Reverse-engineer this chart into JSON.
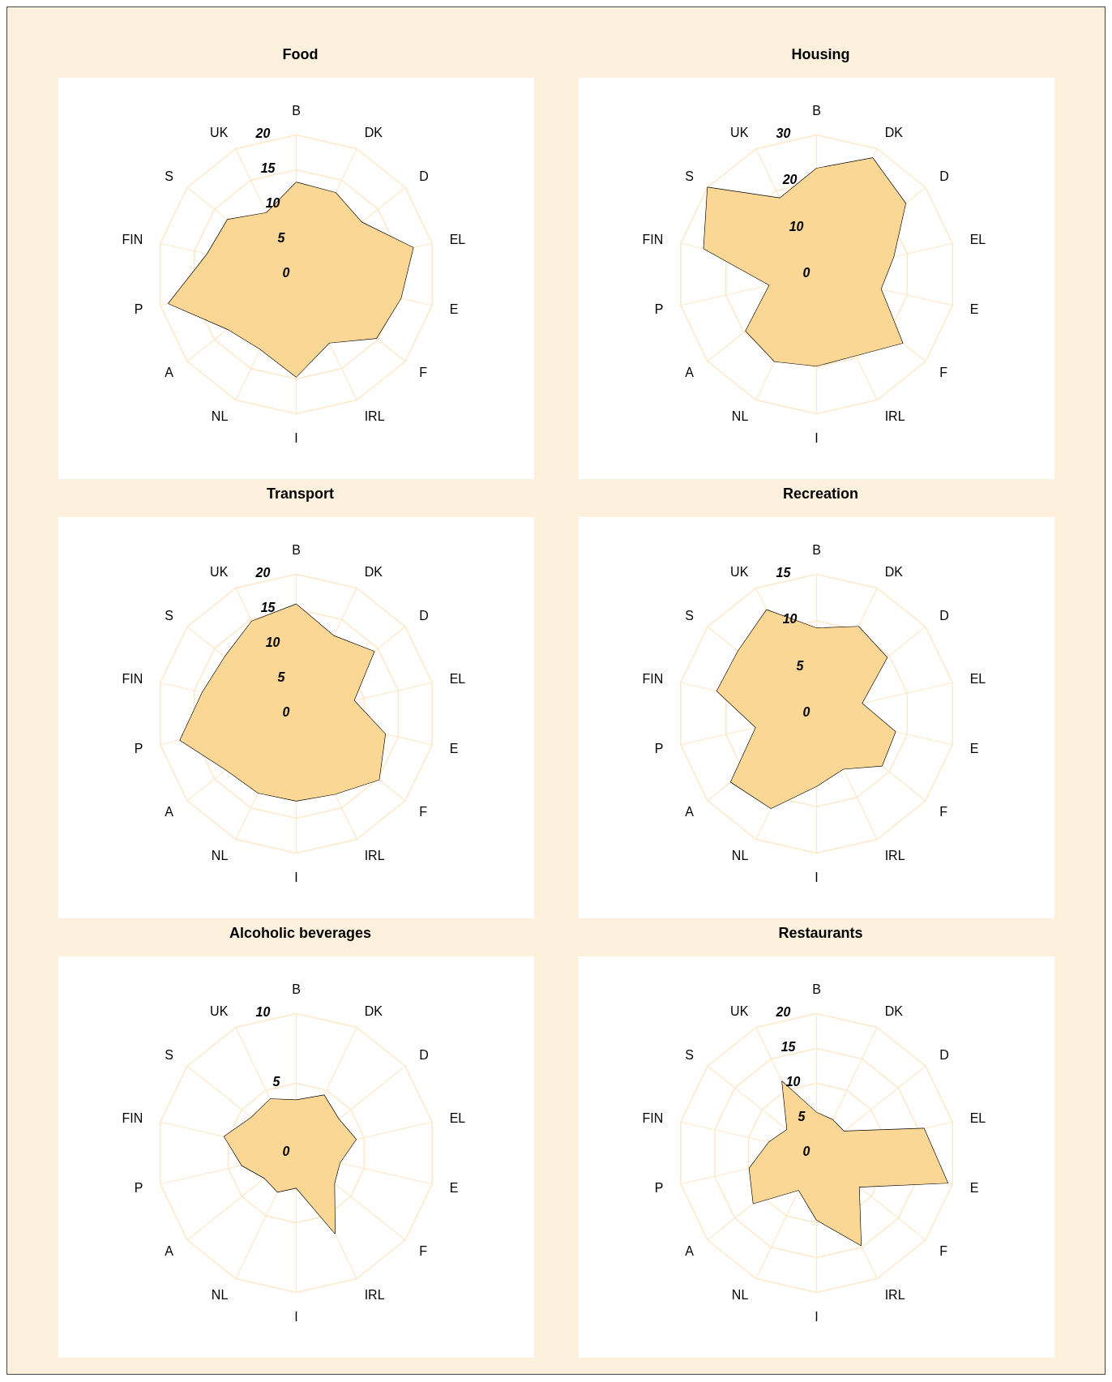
{
  "chart_data": [
    {
      "type": "radar",
      "title": "Food",
      "categories": [
        "B",
        "DK",
        "D",
        "EL",
        "E",
        "F",
        "IRL",
        "I",
        "NL",
        "A",
        "P",
        "FIN",
        "S",
        "UK"
      ],
      "series": [
        {
          "color": "#fad794",
          "values": [
            13.2,
            13.0,
            12.0,
            17.2,
            15.4,
            14.7,
            10.9,
            14.7,
            11.9,
            12.6,
            18.8,
            13.1,
            12.6,
            9.8
          ]
        }
      ],
      "ylim": [
        0,
        20
      ],
      "yticks": [
        0,
        5,
        10,
        15,
        20
      ],
      "grid": true
    },
    {
      "type": "radar",
      "title": "Housing",
      "categories": [
        "B",
        "DK",
        "D",
        "EL",
        "E",
        "F",
        "IRL",
        "I",
        "NL",
        "A",
        "P",
        "FIN",
        "S",
        "UK"
      ],
      "series": [
        {
          "color": "#fad794",
          "values": [
            22.8,
            27.8,
            24.5,
            17.0,
            14.2,
            23.7,
            19.4,
            19.7,
            20.8,
            19.5,
            10.4,
            24.9,
            30,
            18.2
          ]
        }
      ],
      "ylim": [
        0,
        30
      ],
      "yticks": [
        0,
        10,
        20,
        30
      ],
      "grid": true
    },
    {
      "type": "radar",
      "title": "Transport",
      "categories": [
        "B",
        "DK",
        "D",
        "EL",
        "E",
        "F",
        "IRL",
        "I",
        "NL",
        "A",
        "P",
        "FIN",
        "S",
        "UK"
      ],
      "series": [
        {
          "color": "#fad794",
          "values": [
            15.7,
            12.4,
            14.3,
            8.5,
            13.1,
            15.2,
            12.8,
            12.5,
            12.6,
            12.9,
            17.1,
            13.8,
            13.1,
            14.7
          ]
        }
      ],
      "ylim": [
        0,
        20
      ],
      "yticks": [
        0,
        5,
        10,
        15,
        20
      ],
      "grid": true
    },
    {
      "type": "radar",
      "title": "Recreation",
      "categories": [
        "B",
        "DK",
        "D",
        "EL",
        "E",
        "F",
        "IRL",
        "I",
        "NL",
        "A",
        "P",
        "FIN",
        "S",
        "UK"
      ],
      "series": [
        {
          "color": "#fad794",
          "values": [
            9.2,
            10.4,
            9.7,
            5.0,
            8.7,
            9.0,
            6.6,
            7.8,
            11.3,
            11.8,
            6.7,
            11.0,
            10.8,
            12.4
          ]
        }
      ],
      "ylim": [
        0,
        15
      ],
      "yticks": [
        0,
        5,
        10,
        15
      ],
      "grid": true
    },
    {
      "type": "radar",
      "title": "Alcoholic beverages",
      "categories": [
        "B",
        "DK",
        "D",
        "EL",
        "E",
        "F",
        "IRL",
        "I",
        "NL",
        "A",
        "P",
        "FIN",
        "S",
        "UK"
      ],
      "series": [
        {
          "color": "#fad794",
          "values": [
            3.8,
            4.6,
            3.9,
            4.4,
            3.2,
            3.5,
            6.4,
            2.5,
            3.1,
            2.9,
            4.0,
            5.3,
            4.1,
            4.3
          ]
        }
      ],
      "ylim": [
        0,
        10
      ],
      "yticks": [
        0,
        5,
        10
      ],
      "grid": true
    },
    {
      "type": "radar",
      "title": "Restaurants",
      "categories": [
        "B",
        "DK",
        "D",
        "EL",
        "E",
        "F",
        "IRL",
        "I",
        "NL",
        "A",
        "P",
        "FIN",
        "S",
        "UK"
      ],
      "series": [
        {
          "color": "#fad794",
          "values": [
            5.8,
            5.3,
            5.0,
            15.8,
            19.3,
            7.8,
            14.7,
            9.6,
            5.9,
            11.6,
            9.9,
            7.0,
            5.4,
            11.4
          ]
        }
      ],
      "ylim": [
        0,
        20
      ],
      "yticks": [
        0,
        5,
        10,
        15,
        20
      ],
      "grid": true
    }
  ]
}
